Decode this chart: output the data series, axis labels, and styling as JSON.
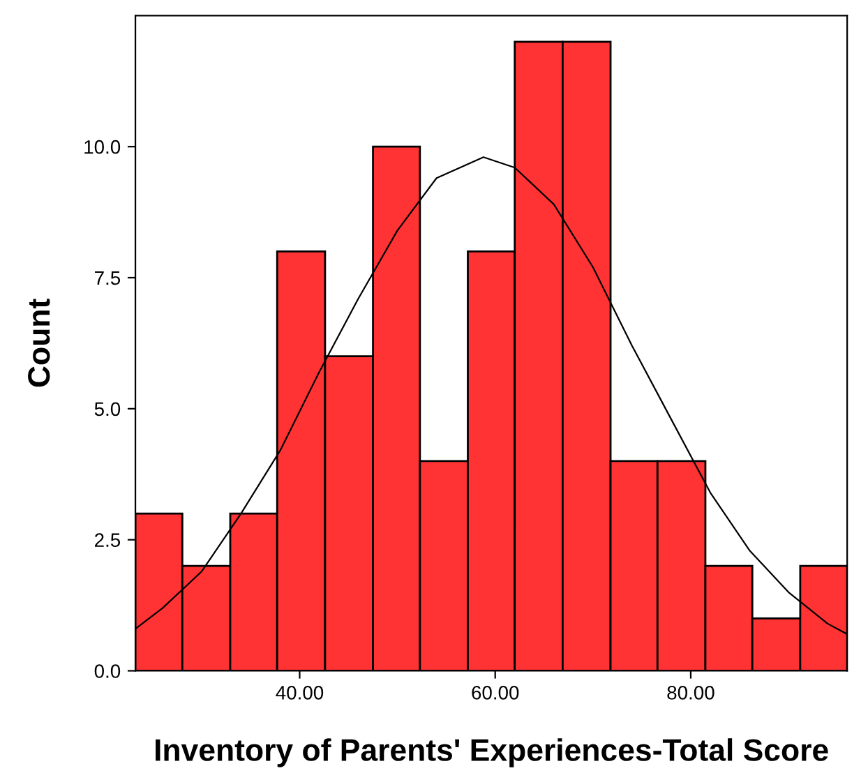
{
  "chart_data": {
    "type": "histogram",
    "xlabel": "Inventory of Parents' Experiences-Total Score",
    "ylabel": "Count",
    "bins": [
      23.2,
      28.0,
      32.9,
      37.7,
      42.6,
      47.5,
      52.3,
      57.2,
      62.0,
      66.9,
      71.8,
      76.6,
      81.5,
      86.3,
      91.2,
      96.0
    ],
    "values": [
      3,
      2,
      3,
      8,
      6,
      10,
      4,
      8,
      12,
      12,
      4,
      4,
      2,
      1,
      2
    ],
    "color": "#ff3333",
    "series": [
      {
        "type": "line",
        "color": "#000000",
        "x": [
          23.2,
          26,
          30,
          34,
          38,
          42,
          46,
          50,
          54,
          58.8,
          62,
          66,
          70,
          74,
          78,
          82,
          86,
          90,
          94,
          96
        ],
        "values": [
          0.8,
          1.2,
          1.9,
          3.0,
          4.2,
          5.7,
          7.1,
          8.4,
          9.4,
          9.8,
          9.6,
          8.9,
          7.7,
          6.2,
          4.8,
          3.4,
          2.3,
          1.5,
          0.9,
          0.7
        ]
      }
    ],
    "xlim": [
      23.2,
      96.0
    ],
    "ylim": [
      0,
      12.5
    ],
    "xticks": [
      {
        "value": 40,
        "label": "40.00"
      },
      {
        "value": 60,
        "label": "60.00"
      },
      {
        "value": 80,
        "label": "80.00"
      }
    ],
    "yticks": [
      {
        "value": 0,
        "label": "0.0"
      },
      {
        "value": 2.5,
        "label": "2.5"
      },
      {
        "value": 5,
        "label": "5.0"
      },
      {
        "value": 7.5,
        "label": "7.5"
      },
      {
        "value": 10,
        "label": "10.0"
      }
    ],
    "grid": false
  }
}
